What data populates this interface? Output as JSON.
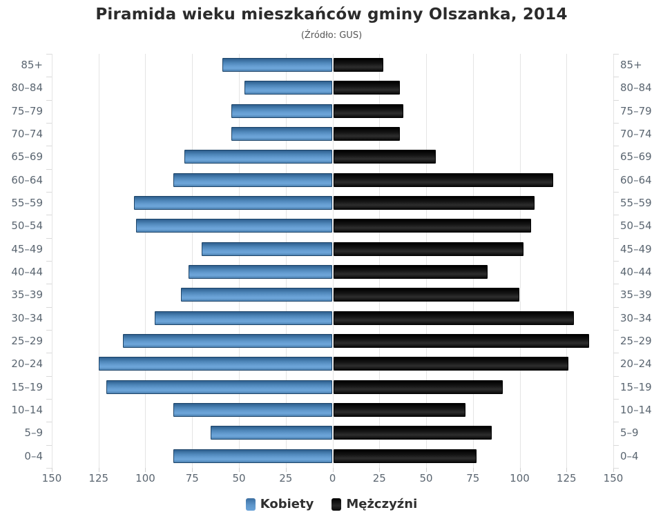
{
  "chart": {
    "title": "Piramida wieku mieszkańców gminy Olszanka, 2014",
    "subtitle": "(Źródło: GUS)"
  },
  "chart_data": {
    "type": "bar",
    "variant": "population-pyramid",
    "title": "Piramida wieku mieszkańców gminy Olszanka, 2014",
    "subtitle": "(Źródło: GUS)",
    "categories": [
      "85+",
      "80–84",
      "75–79",
      "70–74",
      "65–69",
      "60–64",
      "55–59",
      "50–54",
      "45–49",
      "40–44",
      "35–39",
      "30–34",
      "25–29",
      "20–24",
      "15–19",
      "10–14",
      "5–9",
      "0–4"
    ],
    "series": [
      {
        "name": "Kobiety",
        "side": "left",
        "color": "#5b93c8",
        "values": [
          59,
          47,
          54,
          54,
          79,
          85,
          106,
          105,
          70,
          77,
          81,
          95,
          112,
          125,
          121,
          85,
          65,
          85
        ]
      },
      {
        "name": "Mężczyźni",
        "side": "right",
        "color": "#141414",
        "values": [
          27,
          36,
          38,
          36,
          55,
          118,
          108,
          106,
          102,
          83,
          100,
          129,
          137,
          126,
          91,
          71,
          85,
          77
        ]
      }
    ],
    "xlabel": "",
    "ylabel": "",
    "axis_max": 150,
    "tick_interval": 25,
    "x_tick_labels": [
      "150",
      "125",
      "100",
      "75",
      "50",
      "25",
      "0",
      "25",
      "50",
      "75",
      "100",
      "125",
      "150"
    ],
    "grid": true,
    "legend_position": "bottom",
    "colors": {
      "grid": "#e4e4e4",
      "tick": "#cfcfcf",
      "axis_label": "#5a6570",
      "women_bar": "#5b93c8",
      "men_bar": "#141414"
    }
  }
}
